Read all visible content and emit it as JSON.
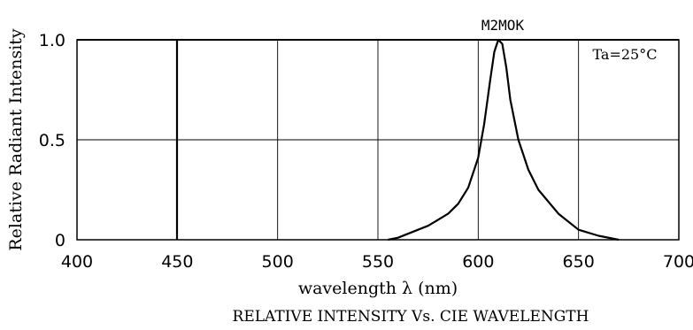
{
  "chart_data": {
    "type": "line",
    "title": "RELATIVE INTENSITY Vs. CIE WAVELENGTH",
    "xlabel": "wavelength λ (nm)",
    "ylabel": "Relative Radiant Intensity",
    "xlim": [
      400,
      700
    ],
    "ylim": [
      0,
      1.0
    ],
    "x_ticks": [
      "400",
      "450",
      "500",
      "550",
      "600",
      "650",
      "700"
    ],
    "y_ticks": [
      "0",
      "0.5",
      "1.0"
    ],
    "x_tick_values": [
      400,
      450,
      500,
      550,
      600,
      650,
      700
    ],
    "y_tick_values": [
      0,
      0.5,
      1.0
    ],
    "grid": true,
    "annotations": {
      "series_label": "M2MOK",
      "condition": "Ta=25°C"
    },
    "series": [
      {
        "name": "M2MOK",
        "x": [
          555,
          560,
          565,
          570,
          575,
          580,
          585,
          590,
          595,
          600,
          603,
          606,
          608,
          610,
          612,
          614,
          616,
          620,
          625,
          630,
          640,
          650,
          660,
          670
        ],
        "y": [
          0.0,
          0.01,
          0.03,
          0.05,
          0.07,
          0.1,
          0.13,
          0.18,
          0.26,
          0.41,
          0.58,
          0.8,
          0.94,
          1.0,
          0.98,
          0.86,
          0.7,
          0.5,
          0.35,
          0.25,
          0.13,
          0.05,
          0.02,
          0.0
        ]
      }
    ]
  }
}
